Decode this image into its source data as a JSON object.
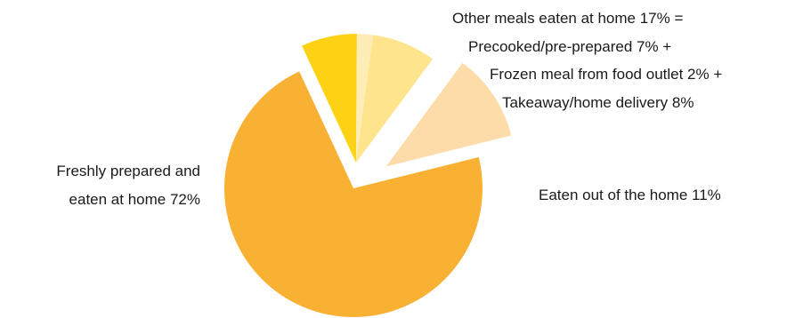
{
  "chart_data": {
    "type": "pie",
    "title": "",
    "slices": [
      {
        "name": "Freshly prepared and eaten at home",
        "value": 72,
        "color": "#F9B133"
      },
      {
        "name": "Precooked/pre-prepared",
        "value": 7,
        "color": "#FDD114"
      },
      {
        "name": "Frozen meal from food outlet",
        "value": 2,
        "color": "#FEEDB7"
      },
      {
        "name": "Takeaway/home delivery",
        "value": 8,
        "color": "#FEE58D"
      },
      {
        "name": "Eaten out of the home",
        "value": 11,
        "color": "#FDDCA9"
      }
    ],
    "labels": {
      "home": [
        "Freshly prepared and",
        "eaten at home 72%"
      ],
      "other_total": "Other meals eaten at home 17% =",
      "precooked": "Precooked/pre-prepared 7% +",
      "frozen": "Frozen meal from food outlet 2% +",
      "takeaway": "Takeaway/home delivery 8%",
      "out": "Eaten out of the home 11%"
    }
  }
}
